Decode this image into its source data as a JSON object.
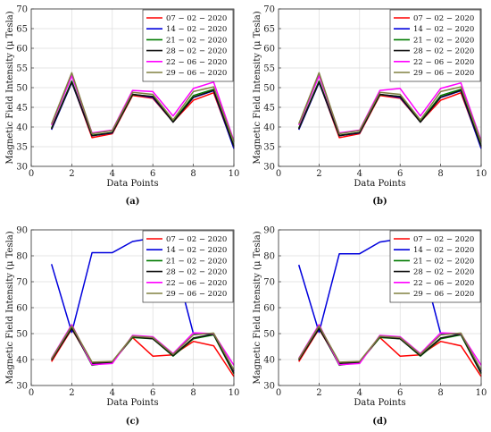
{
  "chart_data": [
    {
      "type": "line",
      "caption": "(a)",
      "xlabel": "Data Points",
      "ylabel": "Magnetic Field Intensity (μ Tesla)",
      "xlim": [
        0,
        10
      ],
      "ylim": [
        30,
        70
      ],
      "xticks": [
        0,
        2,
        4,
        6,
        8,
        10
      ],
      "yticks": [
        30,
        35,
        40,
        45,
        50,
        55,
        60,
        65,
        70
      ],
      "grid": true,
      "legend_position": "top-right",
      "x": [
        1,
        2,
        3,
        4,
        5,
        6,
        7,
        8,
        9,
        10
      ],
      "series": [
        {
          "name": "07 − 02 − 2020",
          "color": "#ff0000",
          "values": [
            39.5,
            51.5,
            37.3,
            38.3,
            48.0,
            47.3,
            41.3,
            46.8,
            48.7,
            34.8
          ]
        },
        {
          "name": "14 − 02 − 2020",
          "color": "#0000dd",
          "values": [
            39.3,
            51.3,
            37.8,
            38.5,
            48.3,
            47.5,
            41.3,
            47.5,
            49.2,
            34.5
          ]
        },
        {
          "name": "21 − 02 − 2020",
          "color": "#007a00",
          "values": [
            39.7,
            51.7,
            37.9,
            38.6,
            48.2,
            47.8,
            41.4,
            48.0,
            49.6,
            35.2
          ]
        },
        {
          "name": "28 − 02 − 2020",
          "color": "#111111",
          "values": [
            39.5,
            51.4,
            37.8,
            38.6,
            48.3,
            47.7,
            41.2,
            47.6,
            49.3,
            35.0
          ]
        },
        {
          "name": "22 − 06 − 2020",
          "color": "#ff00ff",
          "values": [
            40.5,
            53.0,
            38.5,
            39.2,
            49.3,
            49.0,
            42.8,
            49.8,
            51.4,
            36.5
          ]
        },
        {
          "name": "29 − 06 − 2020",
          "color": "#808040",
          "values": [
            40.8,
            53.8,
            38.3,
            39.1,
            48.8,
            48.3,
            41.8,
            49.0,
            50.2,
            36.2
          ]
        }
      ]
    },
    {
      "type": "line",
      "caption": "(b)",
      "xlabel": "Data Points",
      "ylabel": "Magnetic Field Intensity (μ Tesla)",
      "xlim": [
        0,
        10
      ],
      "ylim": [
        30,
        70
      ],
      "xticks": [
        0,
        2,
        4,
        6,
        8,
        10
      ],
      "yticks": [
        30,
        35,
        40,
        45,
        50,
        55,
        60,
        65,
        70
      ],
      "grid": true,
      "legend_position": "top-right",
      "x": [
        1,
        2,
        3,
        4,
        5,
        6,
        7,
        8,
        9,
        10
      ],
      "series": [
        {
          "name": "07 − 02 − 2020",
          "color": "#ff0000",
          "values": [
            39.5,
            51.5,
            37.3,
            38.3,
            48.0,
            47.3,
            41.3,
            46.8,
            48.7,
            34.8
          ]
        },
        {
          "name": "14 − 02 − 2020",
          "color": "#0000dd",
          "values": [
            39.3,
            51.3,
            37.8,
            38.5,
            48.3,
            47.5,
            41.3,
            47.5,
            49.2,
            34.5
          ]
        },
        {
          "name": "21 − 02 − 2020",
          "color": "#007a00",
          "values": [
            39.7,
            51.7,
            37.9,
            38.6,
            48.2,
            47.8,
            41.4,
            48.0,
            49.6,
            35.2
          ]
        },
        {
          "name": "28 − 02 − 2020",
          "color": "#111111",
          "values": [
            39.5,
            51.4,
            37.8,
            38.6,
            48.3,
            47.7,
            41.2,
            47.6,
            49.3,
            35.0
          ]
        },
        {
          "name": "22 − 06 − 2020",
          "color": "#ff00ff",
          "values": [
            40.5,
            53.0,
            38.5,
            39.2,
            49.3,
            49.8,
            42.8,
            49.8,
            51.2,
            36.5
          ]
        },
        {
          "name": "29 − 06 − 2020",
          "color": "#808040",
          "values": [
            40.8,
            53.8,
            38.3,
            39.1,
            48.8,
            48.3,
            41.8,
            49.0,
            50.2,
            36.2
          ]
        }
      ]
    },
    {
      "type": "line",
      "caption": "(c)",
      "xlabel": "Data Points",
      "ylabel": "Magnetic Field Intensity (μ Tesla)",
      "xlim": [
        0,
        10
      ],
      "ylim": [
        30,
        90
      ],
      "xticks": [
        0,
        2,
        4,
        6,
        8,
        10
      ],
      "yticks": [
        30,
        40,
        50,
        60,
        70,
        80,
        90
      ],
      "grid": true,
      "legend_position": "top-right",
      "x": [
        1,
        2,
        3,
        4,
        5,
        6,
        7,
        8,
        9,
        10
      ],
      "series": [
        {
          "name": "07 − 02 − 2020",
          "color": "#ff0000",
          "values": [
            39.2,
            51.8,
            38.6,
            39.0,
            48.5,
            41.3,
            41.8,
            47.0,
            45.3,
            33.5
          ]
        },
        {
          "name": "14 − 02 − 2020",
          "color": "#0000dd",
          "values": [
            76.8,
            50.5,
            81.2,
            81.2,
            85.5,
            86.8,
            80.0,
            50.0,
            49.8,
            35.5
          ]
        },
        {
          "name": "21 − 02 − 2020",
          "color": "#007a00",
          "values": [
            40.0,
            52.5,
            37.8,
            39.0,
            48.5,
            48.0,
            41.3,
            48.0,
            49.5,
            34.5
          ]
        },
        {
          "name": "28 − 02 − 2020",
          "color": "#111111",
          "values": [
            39.8,
            52.0,
            38.5,
            39.0,
            48.8,
            48.0,
            41.5,
            48.3,
            49.8,
            34.8
          ]
        },
        {
          "name": "22 − 06 − 2020",
          "color": "#ff00ff",
          "values": [
            40.5,
            53.5,
            38.0,
            38.5,
            49.3,
            48.8,
            42.3,
            50.3,
            50.0,
            37.8
          ]
        },
        {
          "name": "29 − 06 − 2020",
          "color": "#808040",
          "values": [
            40.3,
            53.0,
            39.0,
            39.3,
            49.0,
            48.5,
            42.0,
            49.5,
            50.2,
            36.0
          ]
        }
      ]
    },
    {
      "type": "line",
      "caption": "(d)",
      "xlabel": "Data Points",
      "ylabel": "Magnetic Field Intensity (μ Tesla)",
      "xlim": [
        0,
        10
      ],
      "ylim": [
        30,
        90
      ],
      "xticks": [
        0,
        2,
        4,
        6,
        8,
        10
      ],
      "yticks": [
        30,
        40,
        50,
        60,
        70,
        80,
        90
      ],
      "grid": true,
      "legend_position": "top-right",
      "x": [
        1,
        2,
        3,
        4,
        5,
        6,
        7,
        8,
        9,
        10
      ],
      "series": [
        {
          "name": "07 − 02 − 2020",
          "color": "#ff0000",
          "values": [
            39.2,
            51.8,
            38.6,
            39.0,
            48.5,
            41.3,
            41.8,
            47.0,
            45.3,
            33.5
          ]
        },
        {
          "name": "14 − 02 − 2020",
          "color": "#0000dd",
          "values": [
            76.5,
            50.5,
            80.8,
            80.8,
            85.3,
            86.5,
            80.0,
            50.0,
            49.8,
            35.5
          ]
        },
        {
          "name": "21 − 02 − 2020",
          "color": "#007a00",
          "values": [
            40.0,
            52.5,
            37.8,
            39.0,
            48.5,
            48.0,
            41.3,
            48.0,
            49.5,
            34.5
          ]
        },
        {
          "name": "28 − 02 − 2020",
          "color": "#111111",
          "values": [
            39.8,
            52.0,
            38.5,
            39.0,
            48.8,
            48.0,
            41.5,
            48.3,
            49.8,
            34.8
          ]
        },
        {
          "name": "22 − 06 − 2020",
          "color": "#ff00ff",
          "values": [
            40.5,
            53.5,
            38.0,
            38.5,
            49.3,
            48.8,
            42.3,
            50.3,
            50.0,
            37.8
          ]
        },
        {
          "name": "29 − 06 − 2020",
          "color": "#808040",
          "values": [
            40.3,
            53.0,
            39.0,
            39.3,
            49.0,
            48.5,
            42.0,
            49.5,
            50.2,
            36.0
          ]
        }
      ]
    }
  ]
}
